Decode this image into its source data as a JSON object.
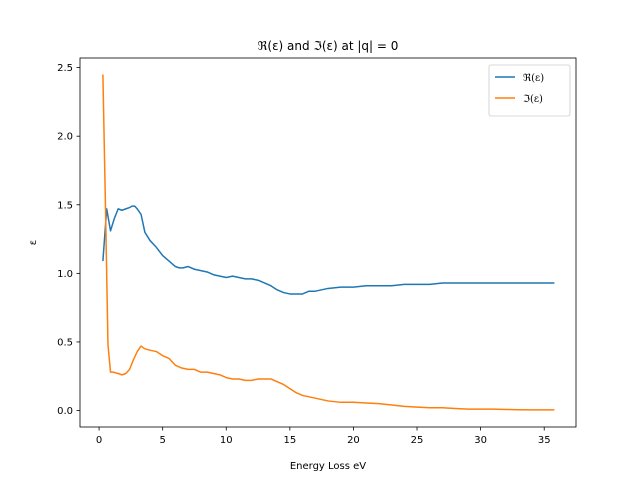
{
  "chart_data": {
    "type": "line",
    "title": "ℜ(ε) and ℑ(ε) at |q| = 0",
    "xlabel": "Energy Loss eV",
    "ylabel": "ε",
    "xlim": [
      -1.5,
      37.5
    ],
    "ylim": [
      -0.12,
      2.57
    ],
    "xticks": [
      0,
      5,
      10,
      15,
      20,
      25,
      30,
      35
    ],
    "xtick_labels": [
      "0",
      "5",
      "10",
      "15",
      "20",
      "25",
      "30",
      "35"
    ],
    "yticks": [
      0.0,
      0.5,
      1.0,
      1.5,
      2.0,
      2.5
    ],
    "ytick_labels": [
      "0.0",
      "0.5",
      "1.0",
      "1.5",
      "2.0",
      "2.5"
    ],
    "grid": false,
    "legend_position": "top-right",
    "series": [
      {
        "name": "ℜ(ε)",
        "color": "#1f77b4",
        "x": [
          0.3,
          0.6,
          0.9,
          1.2,
          1.5,
          1.8,
          2.1,
          2.4,
          2.6,
          2.8,
          3.0,
          3.3,
          3.6,
          4.0,
          4.5,
          5.0,
          5.5,
          6.0,
          6.3,
          6.6,
          7.0,
          7.5,
          8.0,
          8.5,
          9.0,
          9.5,
          10.0,
          10.5,
          11.0,
          11.5,
          12.0,
          12.5,
          13.0,
          13.5,
          14.0,
          14.5,
          15.0,
          15.5,
          16.0,
          16.5,
          17.0,
          18.0,
          19.0,
          20.0,
          21.0,
          22.0,
          23.0,
          24.0,
          25.0,
          26.0,
          27.0,
          28.0,
          29.0,
          30.0,
          31.0,
          32.0,
          33.0,
          34.0,
          35.0,
          35.8
        ],
        "y": [
          1.09,
          1.47,
          1.31,
          1.4,
          1.47,
          1.46,
          1.47,
          1.48,
          1.49,
          1.49,
          1.47,
          1.43,
          1.3,
          1.24,
          1.19,
          1.13,
          1.09,
          1.05,
          1.04,
          1.04,
          1.05,
          1.03,
          1.02,
          1.01,
          0.99,
          0.98,
          0.97,
          0.98,
          0.97,
          0.96,
          0.96,
          0.95,
          0.93,
          0.91,
          0.88,
          0.86,
          0.85,
          0.85,
          0.85,
          0.87,
          0.87,
          0.89,
          0.9,
          0.9,
          0.91,
          0.91,
          0.91,
          0.92,
          0.92,
          0.92,
          0.93,
          0.93,
          0.93,
          0.93,
          0.93,
          0.93,
          0.93,
          0.93,
          0.93,
          0.93
        ]
      },
      {
        "name": "ℑ(ε)",
        "color": "#ff7f0e",
        "x": [
          0.3,
          0.5,
          0.7,
          0.9,
          1.1,
          1.5,
          1.8,
          2.1,
          2.4,
          2.7,
          3.0,
          3.3,
          3.6,
          4.0,
          4.5,
          5.0,
          5.5,
          6.0,
          6.5,
          7.0,
          7.5,
          8.0,
          8.5,
          9.0,
          9.5,
          10.0,
          10.5,
          11.0,
          11.5,
          12.0,
          12.5,
          13.0,
          13.5,
          14.0,
          14.5,
          15.0,
          15.5,
          16.0,
          16.5,
          17.0,
          17.5,
          18.0,
          19.0,
          20.0,
          21.0,
          22.0,
          23.0,
          24.0,
          25.0,
          26.0,
          27.0,
          28.0,
          29.0,
          30.0,
          31.0,
          32.0,
          33.0,
          34.0,
          35.0,
          35.8
        ],
        "y": [
          2.45,
          1.5,
          0.48,
          0.28,
          0.28,
          0.27,
          0.26,
          0.27,
          0.3,
          0.37,
          0.43,
          0.47,
          0.45,
          0.44,
          0.43,
          0.4,
          0.38,
          0.33,
          0.31,
          0.3,
          0.3,
          0.28,
          0.28,
          0.27,
          0.26,
          0.24,
          0.23,
          0.23,
          0.22,
          0.22,
          0.23,
          0.23,
          0.23,
          0.21,
          0.19,
          0.16,
          0.13,
          0.11,
          0.1,
          0.09,
          0.08,
          0.07,
          0.06,
          0.06,
          0.055,
          0.05,
          0.04,
          0.03,
          0.025,
          0.02,
          0.02,
          0.015,
          0.01,
          0.01,
          0.01,
          0.008,
          0.006,
          0.005,
          0.005,
          0.005
        ]
      }
    ]
  }
}
